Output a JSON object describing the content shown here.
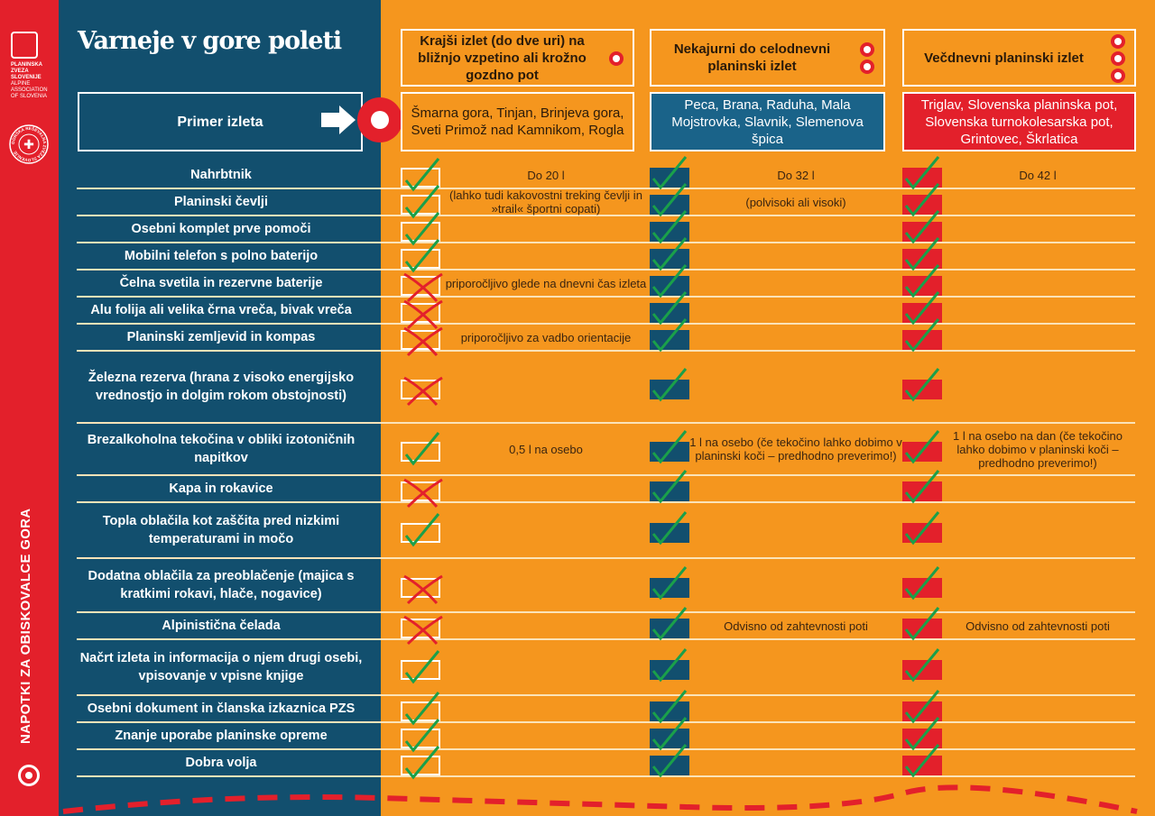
{
  "side": {
    "logo_text": [
      "PLANINSKA",
      "ZVEZA",
      "SLOVENIJE",
      "ALPINE",
      "ASSOCIATION",
      "OF SLOVENIA"
    ],
    "rescue_logo_text": "GORSKA REŠEVALNA ZVEZA SLOVENIJE",
    "vertical_title": "NAPOTKI ZA OBISKOVALCE GORA"
  },
  "title": "Varneje v gore poleti",
  "example_label": "Primer izleta",
  "categories": [
    {
      "title": "Krajši izlet (do dve uri) na bližnjo vzpetino ali krožno gozdno pot",
      "dots": 1,
      "example": "Šmarna gora, Tinjan, Brinjeva gora, Sveti Primož nad Kamnikom, Rogla",
      "color": "#f5961e"
    },
    {
      "title": "Nekajurni do celodnevni planinski izlet",
      "dots": 2,
      "example": "Peca, Brana, Raduha, Mala Mojstrovka, Slavnik, Slemenova špica",
      "color": "#1a6389"
    },
    {
      "title": "Večdnevni planinski izlet",
      "dots": 3,
      "example": "Triglav, Slovenska planinska pot, Slovenska turnokolesarska pot, Grintovec, Škrlatica",
      "color": "#e3202b"
    }
  ],
  "colors": {
    "check": "#1aa04a",
    "cross": "#e3202b",
    "accent": "#e3202b",
    "blue": "#124f6e",
    "orange": "#f5961e"
  },
  "rows": [
    {
      "label": "Nahrbtnik",
      "short": "check",
      "notes": [
        "Do 20 l",
        "Do 32 l",
        "Do 42 l"
      ]
    },
    {
      "label": "Planinski čevlji",
      "short": "check",
      "notes": [
        "(lahko tudi kakovostni treking čevlji in »trail« športni copati)",
        "(polvisoki ali visoki)",
        ""
      ]
    },
    {
      "label": "Osebni komplet prve pomoči",
      "short": "check",
      "notes": [
        "",
        "",
        ""
      ]
    },
    {
      "label": "Mobilni telefon s polno baterijo",
      "short": "check",
      "notes": [
        "",
        "",
        ""
      ]
    },
    {
      "label": "Čelna svetila in rezervne baterije",
      "short": "cross",
      "notes": [
        "priporočljivo glede na dnevni čas izleta",
        "",
        ""
      ]
    },
    {
      "label": "Alu folija ali velika črna vreča, bivak vreča",
      "short": "cross",
      "notes": [
        "",
        "",
        ""
      ]
    },
    {
      "label": "Planinski zemljevid in kompas",
      "short": "cross",
      "notes": [
        "priporočljivo za vadbo orientacije",
        "",
        ""
      ]
    },
    {
      "label": "Železna rezerva (hrana z visoko energijsko vrednostjo in dolgim rokom obstojnosti)",
      "short": "cross",
      "notes": [
        "",
        "",
        ""
      ]
    },
    {
      "label": "Brezalkoholna tekočina v obliki izotoničnih napitkov",
      "short": "check",
      "notes": [
        "0,5 l na osebo",
        "1 l na osebo (če tekočino lahko dobimo v planinski koči – predhodno preverimo!)",
        "1 l na osebo na dan (če tekočino lahko dobimo v planinski koči – predhodno preverimo!)"
      ]
    },
    {
      "label": "Kapa in rokavice",
      "short": "cross",
      "notes": [
        "",
        "",
        ""
      ]
    },
    {
      "label": "Topla oblačila kot zaščita pred nizkimi temperaturami in močo",
      "short": "check",
      "notes": [
        "",
        "",
        ""
      ]
    },
    {
      "label": "Dodatna oblačila za preoblačenje (majica s kratkimi rokavi, hlače, nogavice)",
      "short": "cross",
      "notes": [
        "",
        "",
        ""
      ]
    },
    {
      "label": "Alpinistična čelada",
      "short": "cross",
      "notes": [
        "",
        "Odvisno od zahtevnosti poti",
        "Odvisno od zahtevnosti poti"
      ]
    },
    {
      "label": "Načrt izleta in informacija o njem drugi osebi, vpisovanje v vpisne knjige",
      "short": "check",
      "notes": [
        "",
        "",
        ""
      ]
    },
    {
      "label": "Osebni dokument in članska izkaznica PZS",
      "short": "check",
      "notes": [
        "",
        "",
        ""
      ]
    },
    {
      "label": "Znanje uporabe planinske opreme",
      "short": "check",
      "notes": [
        "",
        "",
        ""
      ]
    },
    {
      "label": "Dobra volja",
      "short": "check",
      "notes": [
        "",
        "",
        ""
      ]
    }
  ]
}
